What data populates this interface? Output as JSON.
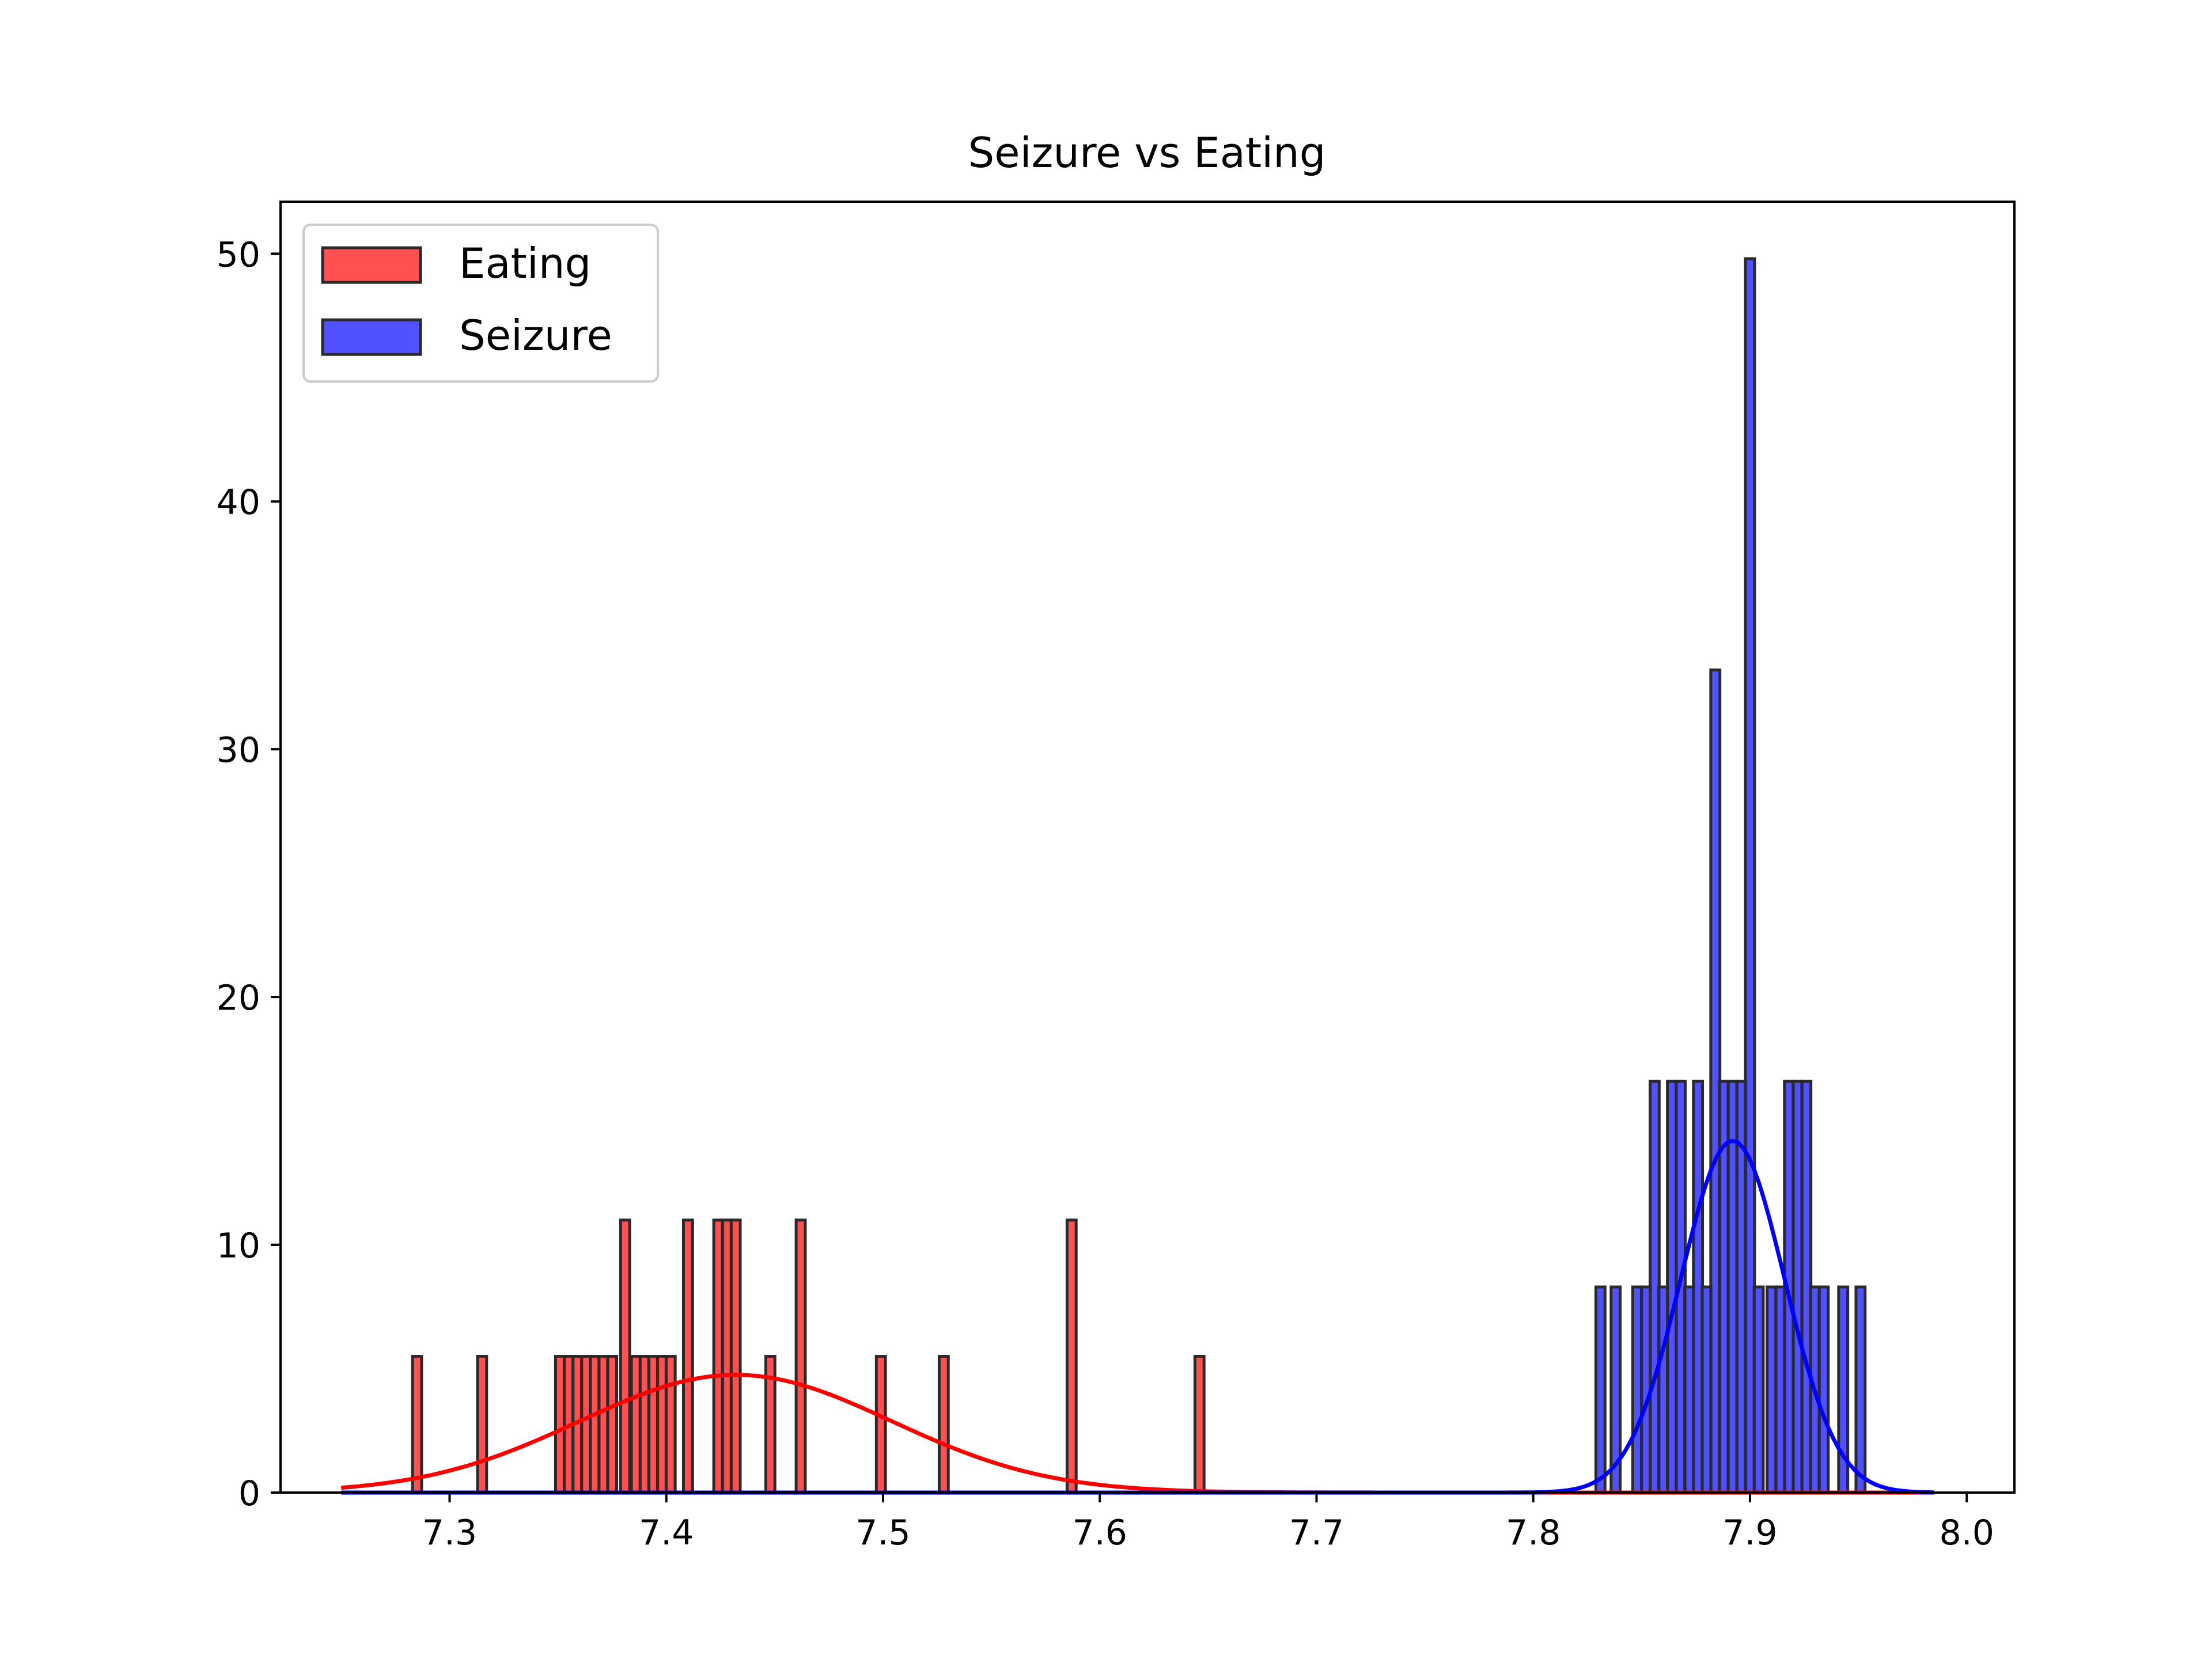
{
  "chart_data": {
    "type": "bar",
    "title": "Seizure vs Eating",
    "xlabel": "",
    "ylabel": "",
    "xlim": [
      7.222,
      8.022
    ],
    "ylim": [
      0,
      52.1
    ],
    "xticks": [
      7.3,
      7.4,
      7.5,
      7.6,
      7.7,
      7.8,
      7.9,
      8.0
    ],
    "xtick_labels": [
      "7.3",
      "7.4",
      "7.5",
      "7.6",
      "7.7",
      "7.8",
      "7.9",
      "8.0"
    ],
    "yticks": [
      0,
      10,
      20,
      30,
      40,
      50
    ],
    "ytick_labels": [
      "0",
      "10",
      "20",
      "30",
      "40",
      "50"
    ],
    "grid": false,
    "legend": {
      "placement": "upper-left"
    },
    "bin_width": 0.0042,
    "series": [
      {
        "name": "Eating",
        "kind": "histogram",
        "color": "#ff3333",
        "edge_color": "#2a2a2a",
        "bins": [
          {
            "x": 7.285,
            "y": 5.5
          },
          {
            "x": 7.315,
            "y": 5.5
          },
          {
            "x": 7.351,
            "y": 5.5
          },
          {
            "x": 7.355,
            "y": 5.5
          },
          {
            "x": 7.359,
            "y": 5.5
          },
          {
            "x": 7.363,
            "y": 5.5
          },
          {
            "x": 7.367,
            "y": 5.5
          },
          {
            "x": 7.371,
            "y": 5.5
          },
          {
            "x": 7.375,
            "y": 5.5
          },
          {
            "x": 7.381,
            "y": 11
          },
          {
            "x": 7.386,
            "y": 5.5
          },
          {
            "x": 7.39,
            "y": 5.5
          },
          {
            "x": 7.394,
            "y": 5.5
          },
          {
            "x": 7.398,
            "y": 5.5
          },
          {
            "x": 7.402,
            "y": 5.5
          },
          {
            "x": 7.41,
            "y": 11
          },
          {
            "x": 7.424,
            "y": 11
          },
          {
            "x": 7.428,
            "y": 11
          },
          {
            "x": 7.432,
            "y": 11
          },
          {
            "x": 7.448,
            "y": 5.5
          },
          {
            "x": 7.462,
            "y": 11
          },
          {
            "x": 7.499,
            "y": 5.5
          },
          {
            "x": 7.528,
            "y": 5.5
          },
          {
            "x": 7.587,
            "y": 11
          },
          {
            "x": 7.646,
            "y": 5.5
          }
        ]
      },
      {
        "name": "Seizure",
        "kind": "histogram",
        "color": "#3333ff",
        "edge_color": "#2a2a2a",
        "bins": [
          {
            "x": 7.831,
            "y": 8.3
          },
          {
            "x": 7.838,
            "y": 8.3
          },
          {
            "x": 7.848,
            "y": 8.3
          },
          {
            "x": 7.852,
            "y": 8.3
          },
          {
            "x": 7.856,
            "y": 16.6
          },
          {
            "x": 7.86,
            "y": 8.3
          },
          {
            "x": 7.864,
            "y": 16.6
          },
          {
            "x": 7.868,
            "y": 16.6
          },
          {
            "x": 7.872,
            "y": 8.3
          },
          {
            "x": 7.876,
            "y": 16.6
          },
          {
            "x": 7.88,
            "y": 8.3
          },
          {
            "x": 7.884,
            "y": 33.2
          },
          {
            "x": 7.888,
            "y": 16.6
          },
          {
            "x": 7.892,
            "y": 16.6
          },
          {
            "x": 7.896,
            "y": 16.6
          },
          {
            "x": 7.9,
            "y": 49.8
          },
          {
            "x": 7.904,
            "y": 8.3
          },
          {
            "x": 7.91,
            "y": 8.3
          },
          {
            "x": 7.914,
            "y": 8.3
          },
          {
            "x": 7.918,
            "y": 16.6
          },
          {
            "x": 7.922,
            "y": 16.6
          },
          {
            "x": 7.926,
            "y": 16.6
          },
          {
            "x": 7.93,
            "y": 8.3
          },
          {
            "x": 7.934,
            "y": 8.3
          },
          {
            "x": 7.943,
            "y": 8.3
          },
          {
            "x": 7.951,
            "y": 8.3
          }
        ]
      }
    ],
    "curves": [
      {
        "series": "Eating",
        "kind": "normal-fit",
        "color": "#ff0000",
        "mean": 7.432,
        "peak": 4.75,
        "sd": 0.072,
        "x_range": [
          7.25,
          7.985
        ]
      },
      {
        "series": "Seizure",
        "kind": "normal-fit",
        "color": "#0000ff",
        "mean": 7.892,
        "peak": 14.2,
        "sd": 0.024,
        "x_range": [
          7.25,
          7.985
        ]
      }
    ]
  }
}
